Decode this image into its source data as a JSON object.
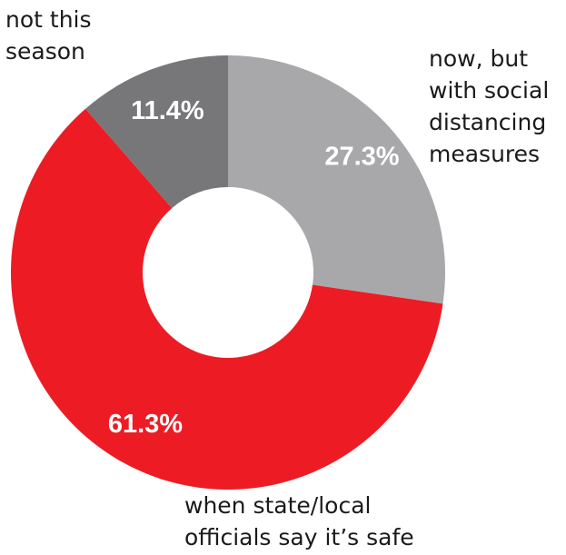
{
  "chart_data": {
    "type": "pie",
    "donut": true,
    "title": "",
    "slices": [
      {
        "label_lines": [
          "now, but",
          "with social",
          "distancing",
          "measures"
        ],
        "value": 27.3,
        "value_label": "27.3%",
        "color": "#a8a8aa"
      },
      {
        "label_lines": [
          "when state/local",
          "officials say it’s safe"
        ],
        "value": 61.3,
        "value_label": "61.3%",
        "color": "#ed1c24"
      },
      {
        "label_lines": [
          "not this",
          "season"
        ],
        "value": 11.4,
        "value_label": "11.4%",
        "color": "#77777a"
      }
    ],
    "start": "12 o'clock",
    "direction": "clockwise",
    "legend": "none"
  }
}
